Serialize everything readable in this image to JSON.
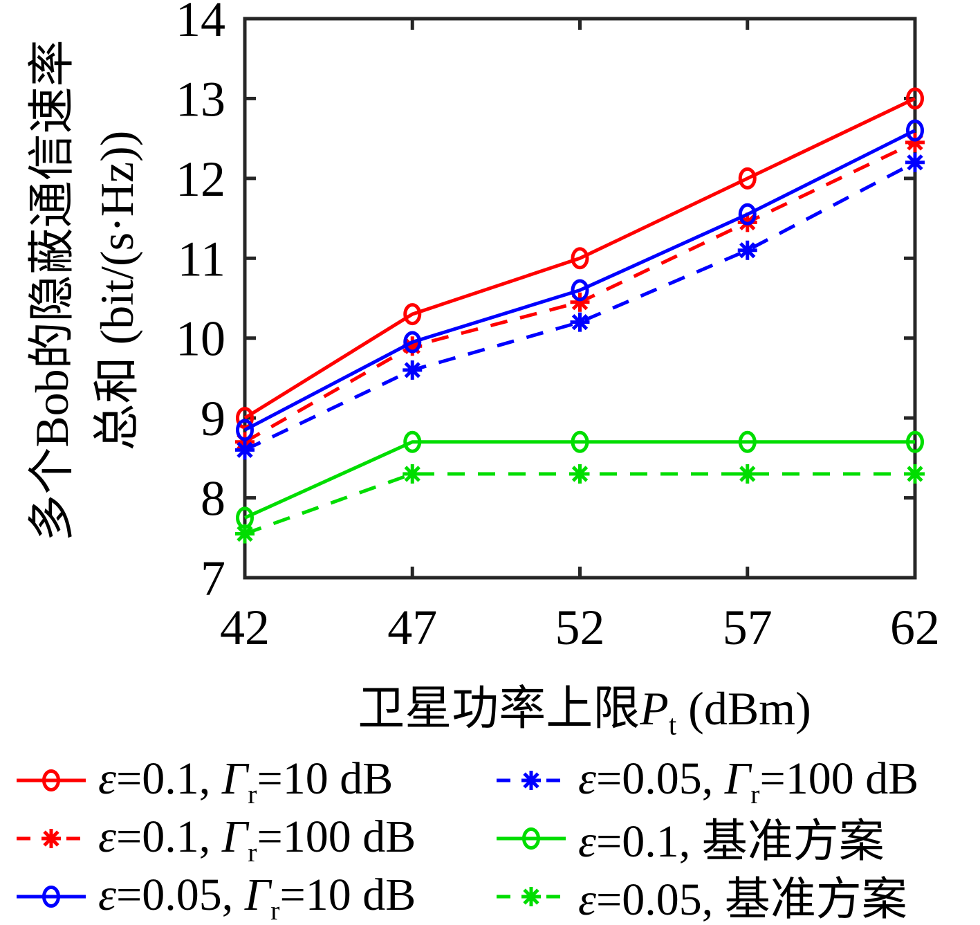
{
  "figure_background": "#ffffff",
  "axis_color": "#262626",
  "chart_data": {
    "type": "line",
    "x": [
      42,
      47,
      52,
      57,
      62
    ],
    "xlim": [
      42,
      62
    ],
    "ylim": [
      7,
      14
    ],
    "x_ticks": [
      "42",
      "47",
      "52",
      "57",
      "62"
    ],
    "y_ticks": [
      "7",
      "8",
      "9",
      "10",
      "11",
      "12",
      "13",
      "14"
    ],
    "grid": false,
    "legend_position": "below-two-columns",
    "xlabel_parts": {
      "cn": "卫星功率上限",
      "var": "P",
      "sub": "t",
      "suffix": " (dBm)"
    },
    "ylabel_line1": "多个Bob的隐蔽通信速率",
    "ylabel_line2": "总和 (bit/(s·Hz))",
    "series": [
      {
        "id": "eps-0p1-gamma-10db",
        "name": "ε=0.1, Γr=10 dB",
        "color": "#ff0000",
        "line": "solid",
        "marker": "circle",
        "values": [
          9.0,
          10.3,
          11.0,
          12.0,
          13.0
        ],
        "label_parts": [
          {
            "t": "ε",
            "i": true
          },
          {
            "t": "=0.1, "
          },
          {
            "t": "Γ",
            "i": true
          },
          {
            "t": "r",
            "sub": true
          },
          {
            "t": "=10 dB"
          }
        ]
      },
      {
        "id": "eps-0p1-gamma-100db",
        "name": "ε=0.1, Γr=100 dB",
        "color": "#ff0000",
        "line": "dashed",
        "marker": "asterisk",
        "values": [
          8.7,
          9.9,
          10.45,
          11.45,
          12.45
        ],
        "label_parts": [
          {
            "t": "ε",
            "i": true
          },
          {
            "t": "=0.1, "
          },
          {
            "t": "Γ",
            "i": true
          },
          {
            "t": "r",
            "sub": true
          },
          {
            "t": "=100 dB"
          }
        ]
      },
      {
        "id": "eps-0p05-gamma-10db",
        "name": "ε=0.05, Γr=10 dB",
        "color": "#0000ff",
        "line": "solid",
        "marker": "circle",
        "values": [
          8.85,
          9.95,
          10.6,
          11.55,
          12.6
        ],
        "label_parts": [
          {
            "t": "ε",
            "i": true
          },
          {
            "t": "=0.05, "
          },
          {
            "t": "Γ",
            "i": true
          },
          {
            "t": "r",
            "sub": true
          },
          {
            "t": "=10 dB"
          }
        ]
      },
      {
        "id": "eps-0p05-gamma-100db",
        "name": "ε=0.05, Γr=100 dB",
        "color": "#0000ff",
        "line": "dashed",
        "marker": "asterisk",
        "values": [
          8.6,
          9.6,
          10.2,
          11.1,
          12.2
        ],
        "label_parts": [
          {
            "t": "ε",
            "i": true
          },
          {
            "t": "=0.05, "
          },
          {
            "t": "Γ",
            "i": true
          },
          {
            "t": "r",
            "sub": true
          },
          {
            "t": "=100 dB"
          }
        ]
      },
      {
        "id": "eps-0p1-baseline",
        "name": "ε=0.1, 基准方案",
        "color": "#00dd00",
        "line": "solid",
        "marker": "circle",
        "values": [
          7.75,
          8.7,
          8.7,
          8.7,
          8.7
        ],
        "label_parts": [
          {
            "t": "ε",
            "i": true
          },
          {
            "t": "=0.1, 基准方案"
          }
        ]
      },
      {
        "id": "eps-0p05-baseline",
        "name": "ε=0.05, 基准方案",
        "color": "#00dd00",
        "line": "dashed",
        "marker": "asterisk",
        "values": [
          7.55,
          8.3,
          8.3,
          8.3,
          8.3
        ],
        "label_parts": [
          {
            "t": "ε",
            "i": true
          },
          {
            "t": "=0.05, 基准方案"
          }
        ]
      }
    ]
  }
}
